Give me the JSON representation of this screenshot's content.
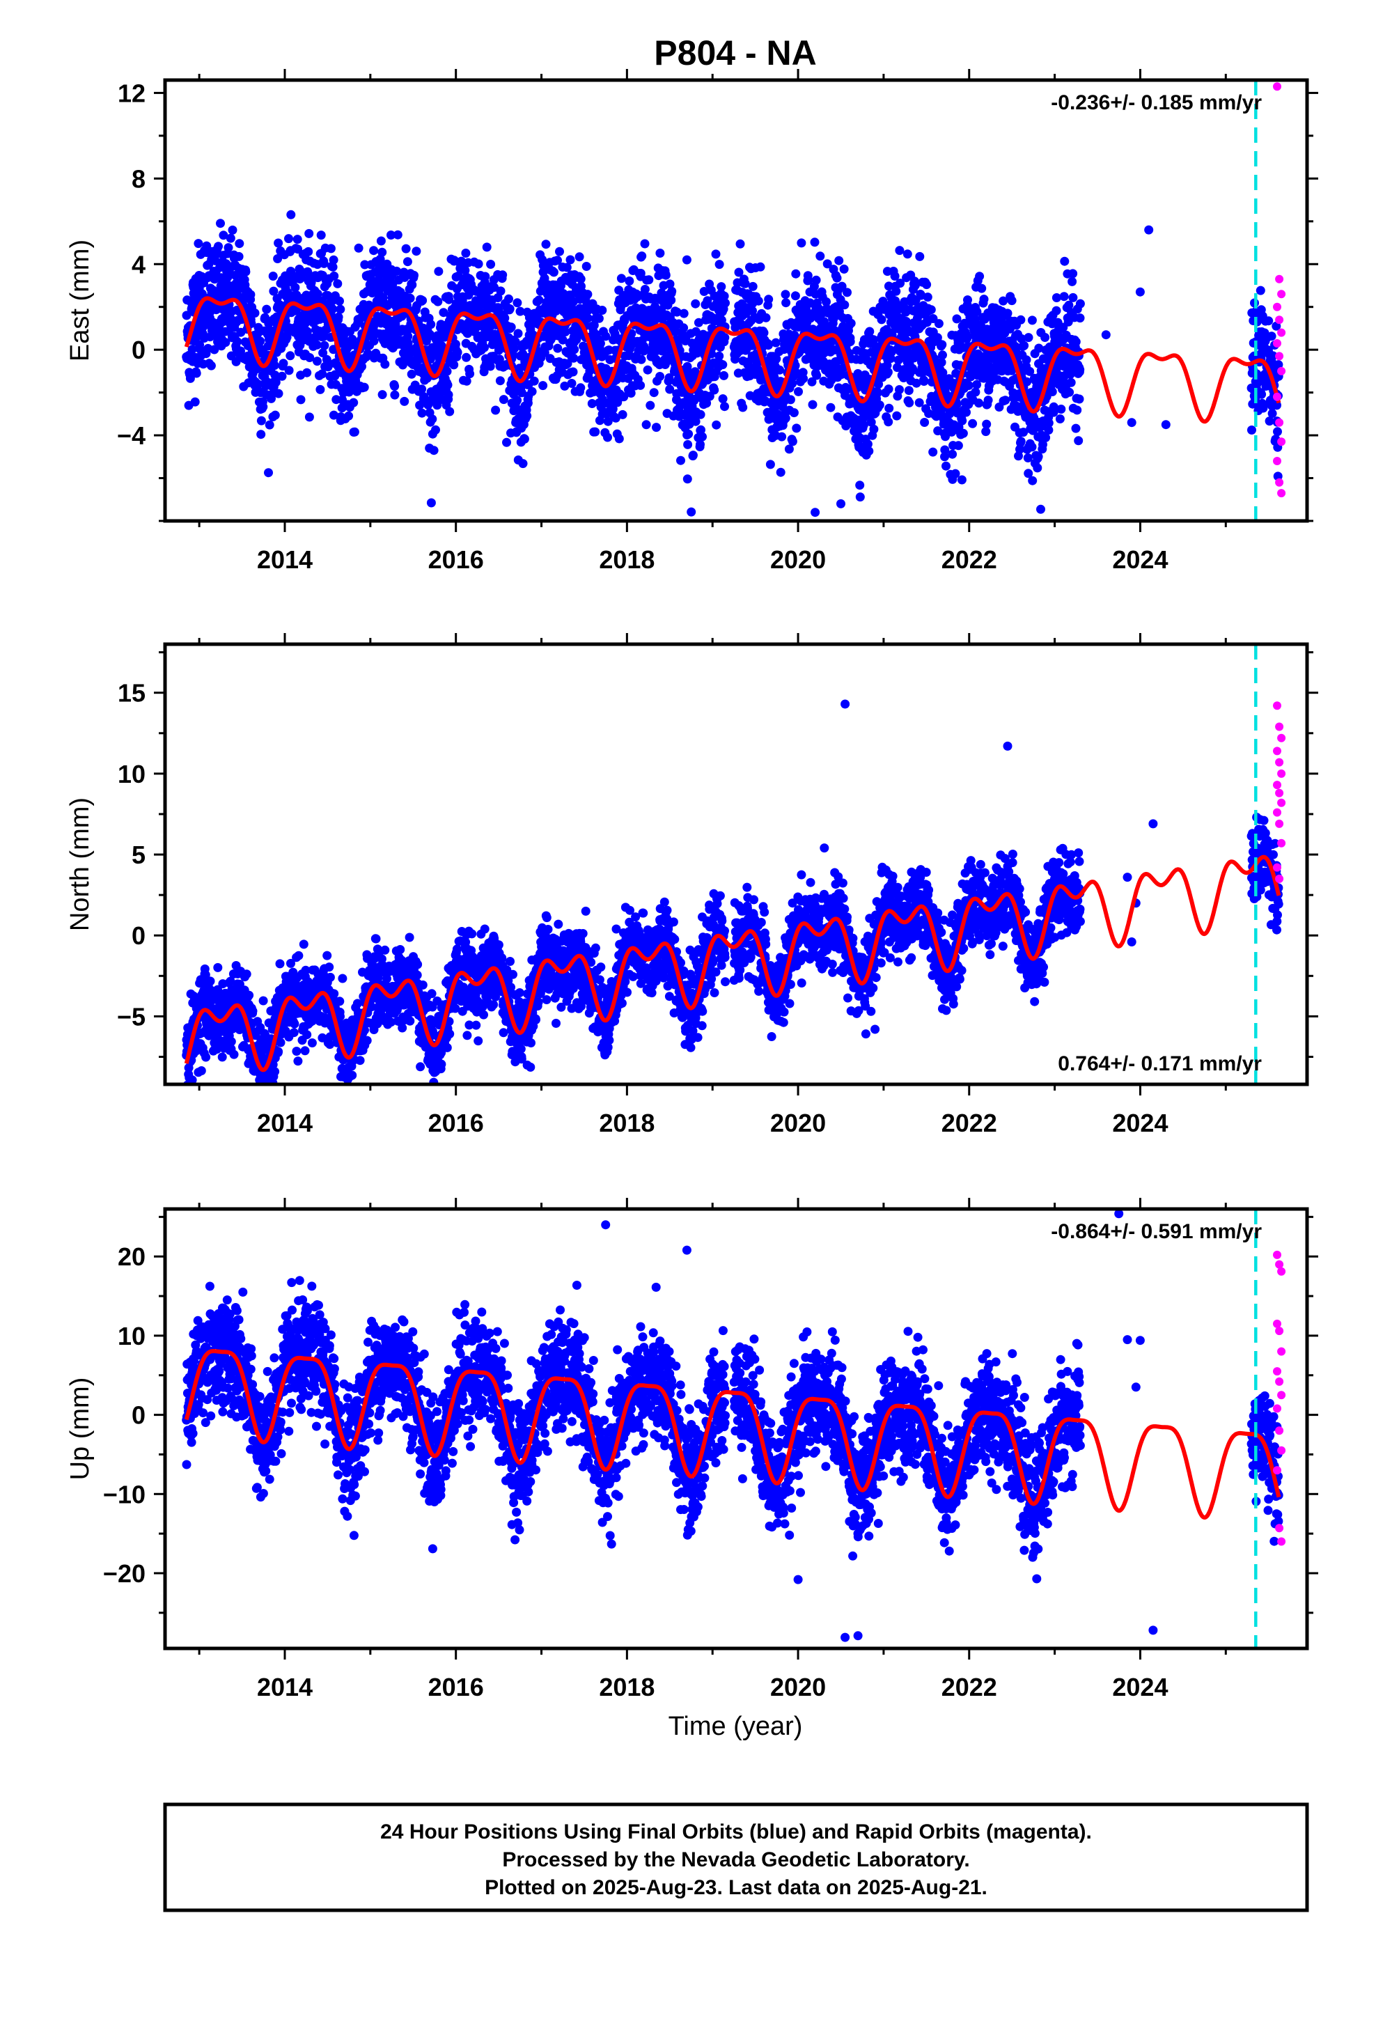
{
  "title": "P804 - NA",
  "colors": {
    "final_orbits": "#0000ff",
    "rapid_orbits": "#ff00ff",
    "model": "#ff0000",
    "marker_line": "#00e0e0"
  },
  "marker_year": 2025.35,
  "footer": {
    "line1": "24 Hour Positions Using Final Orbits (blue) and Rapid Orbits (magenta).",
    "line2": "Processed by the Nevada Geodetic Laboratory.",
    "line3": "Plotted on 2025-Aug-23. Last data on 2025-Aug-21."
  },
  "chart_data": [
    {
      "type": "scatter",
      "component": "east",
      "ylabel": "East (mm)",
      "xlabel": "",
      "rate_text": "-0.236+/- 0.185 mm/yr",
      "rate_position": "top-right",
      "xlim": [
        2012.6,
        2025.95
      ],
      "ylim": [
        -8,
        12.6
      ],
      "x_ticks": [
        "2014",
        "2016",
        "2018",
        "2020",
        "2022",
        "2024"
      ],
      "y_ticks": [
        {
          "value": 12,
          "label": "12"
        },
        {
          "value": 8,
          "label": "8"
        },
        {
          "value": 4,
          "label": "4"
        },
        {
          "value": 0,
          "label": "0"
        },
        {
          "value": -4,
          "label": "−4"
        }
      ],
      "model": {
        "offset": 0.0,
        "rate": -0.236,
        "annual": 1.4,
        "semi": 0.6,
        "ref_year": 2019.0
      },
      "scatter_spread": 1.5,
      "outliers": [
        [
          2024.1,
          5.6
        ],
        [
          2023.6,
          0.7
        ],
        [
          2024.0,
          2.7
        ],
        [
          2023.9,
          -3.4
        ],
        [
          2024.3,
          -3.5
        ],
        [
          2020.2,
          -7.6
        ],
        [
          2020.5,
          -7.2
        ],
        [
          2018.7,
          4.2
        ]
      ],
      "series": [
        {
          "name": "Final Orbits (blue)",
          "ranges": [
            [
              2012.85,
              2023.3
            ],
            [
              2025.3,
              2025.62
            ]
          ]
        },
        {
          "name": "Rapid Orbits (magenta)",
          "range": [
            2025.6,
            2025.65
          ],
          "points": [
            12.3,
            3.3,
            2.6,
            2.0,
            1.4,
            0.8,
            0.3,
            -0.3,
            -1.0,
            -2.2,
            -3.4,
            -4.3,
            -5.2,
            -6.2,
            -6.7
          ]
        }
      ]
    },
    {
      "type": "scatter",
      "component": "north",
      "ylabel": "North (mm)",
      "xlabel": "",
      "rate_text": "0.764+/- 0.171 mm/yr",
      "rate_position": "bottom-right",
      "xlim": [
        2012.6,
        2025.95
      ],
      "ylim": [
        -9.2,
        18
      ],
      "x_ticks": [
        "2014",
        "2016",
        "2018",
        "2020",
        "2022",
        "2024"
      ],
      "y_ticks": [
        {
          "value": 15,
          "label": "15"
        },
        {
          "value": 10,
          "label": "10"
        },
        {
          "value": 5,
          "label": "5"
        },
        {
          "value": 0,
          "label": "0"
        },
        {
          "value": -5,
          "label": "−5"
        }
      ],
      "model": {
        "offset": -1.5,
        "rate": 0.764,
        "annual": 1.7,
        "semi": 1.1,
        "ref_year": 2019.0
      },
      "scatter_spread": 1.2,
      "outliers": [
        [
          2020.55,
          14.3
        ],
        [
          2022.45,
          11.7
        ],
        [
          2024.15,
          6.9
        ],
        [
          2023.85,
          3.6
        ],
        [
          2023.95,
          2.0
        ],
        [
          2023.9,
          -0.4
        ],
        [
          2020.9,
          -5.8
        ],
        [
          2019.8,
          -5.3
        ]
      ],
      "series": [
        {
          "name": "Final Orbits (blue)",
          "ranges": [
            [
              2012.85,
              2023.3
            ],
            [
              2025.3,
              2025.62
            ]
          ]
        },
        {
          "name": "Rapid Orbits (magenta)",
          "range": [
            2025.6,
            2025.65
          ],
          "points": [
            14.2,
            12.9,
            12.2,
            11.4,
            10.7,
            10.0,
            9.3,
            8.8,
            8.2,
            7.6,
            6.9,
            5.7,
            4.2,
            3.5
          ]
        }
      ]
    },
    {
      "type": "scatter",
      "component": "up",
      "ylabel": "Up (mm)",
      "xlabel": "Time (year)",
      "rate_text": "-0.864+/- 0.591 mm/yr",
      "rate_position": "top-right",
      "xlim": [
        2012.6,
        2025.95
      ],
      "ylim": [
        -29.5,
        26
      ],
      "x_ticks": [
        "2014",
        "2016",
        "2018",
        "2020",
        "2022",
        "2024"
      ],
      "y_ticks": [
        {
          "value": 20,
          "label": "20"
        },
        {
          "value": 10,
          "label": "10"
        },
        {
          "value": 0,
          "label": "0"
        },
        {
          "value": -10,
          "label": "−10"
        },
        {
          "value": -20,
          "label": "−20"
        }
      ],
      "model": {
        "offset": -1.0,
        "rate": -0.864,
        "annual": 5.5,
        "semi": 1.5,
        "ref_year": 2019.0
      },
      "scatter_spread": 3.5,
      "outliers": [
        [
          2023.75,
          25.4
        ],
        [
          2017.75,
          24.0
        ],
        [
          2018.7,
          20.8
        ],
        [
          2023.85,
          9.5
        ],
        [
          2024.0,
          9.4
        ],
        [
          2023.95,
          3.5
        ],
        [
          2024.15,
          -27.2
        ],
        [
          2020.55,
          -28.1
        ],
        [
          2020.7,
          -27.9
        ],
        [
          2020.0,
          -20.8
        ]
      ],
      "series": [
        {
          "name": "Final Orbits (blue)",
          "ranges": [
            [
              2012.85,
              2023.3
            ],
            [
              2025.3,
              2025.62
            ]
          ]
        },
        {
          "name": "Rapid Orbits (magenta)",
          "range": [
            2025.6,
            2025.65
          ],
          "points": [
            20.2,
            19.0,
            18.1,
            11.5,
            10.6,
            8.0,
            5.5,
            4.2,
            2.5,
            0.8,
            -2.0,
            -4.5,
            -7.0,
            -14.3,
            -16.0
          ]
        }
      ]
    }
  ]
}
